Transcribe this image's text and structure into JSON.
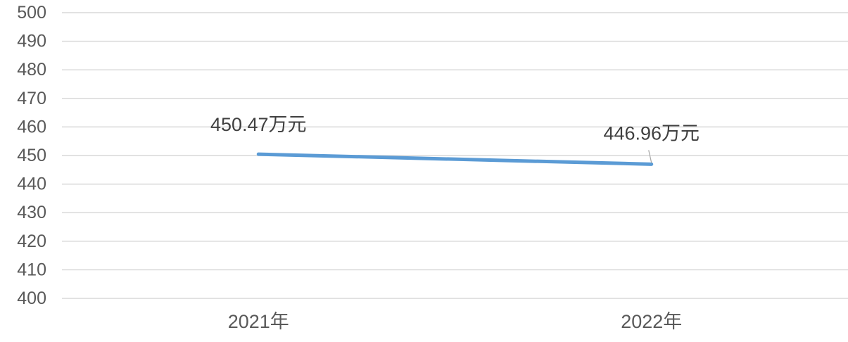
{
  "chart_data": {
    "type": "line",
    "title": "",
    "xlabel": "",
    "ylabel": "",
    "categories": [
      "2021年",
      "2022年"
    ],
    "series": [
      {
        "values": [
          450.47,
          446.96
        ],
        "data_labels": [
          "450.47万元",
          "446.96万元"
        ],
        "color": "#5b9bd5"
      }
    ],
    "ylim": [
      400,
      500
    ],
    "yticks": [
      400,
      410,
      420,
      430,
      440,
      450,
      460,
      470,
      480,
      490,
      500
    ],
    "grid": true,
    "legend": "none"
  }
}
